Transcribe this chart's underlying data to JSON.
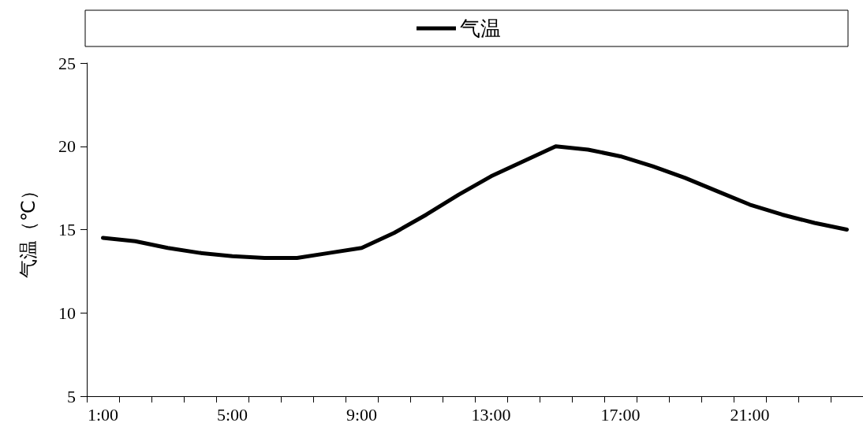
{
  "chart_data": {
    "type": "line",
    "ylabel": "气温（℃）",
    "categories": [
      "1:00",
      null,
      null,
      null,
      "5:00",
      null,
      null,
      null,
      "9:00",
      null,
      null,
      null,
      "13:00",
      null,
      null,
      null,
      "17:00",
      null,
      null,
      null,
      "21:00",
      null,
      null,
      null
    ],
    "series": [
      {
        "name": "气温",
        "color": "#000000",
        "values": [
          14.5,
          14.3,
          13.9,
          13.6,
          13.4,
          13.3,
          13.3,
          13.6,
          13.9,
          14.8,
          15.9,
          17.1,
          18.2,
          19.1,
          20.0,
          19.8,
          19.4,
          18.8,
          18.1,
          17.3,
          16.5,
          15.9,
          15.4,
          15.0
        ]
      }
    ],
    "ylim": [
      5,
      25
    ],
    "yticks": [
      5,
      10,
      15,
      20,
      25
    ],
    "grid": false,
    "legend": "top",
    "marker": "none",
    "line_style": "solid"
  }
}
